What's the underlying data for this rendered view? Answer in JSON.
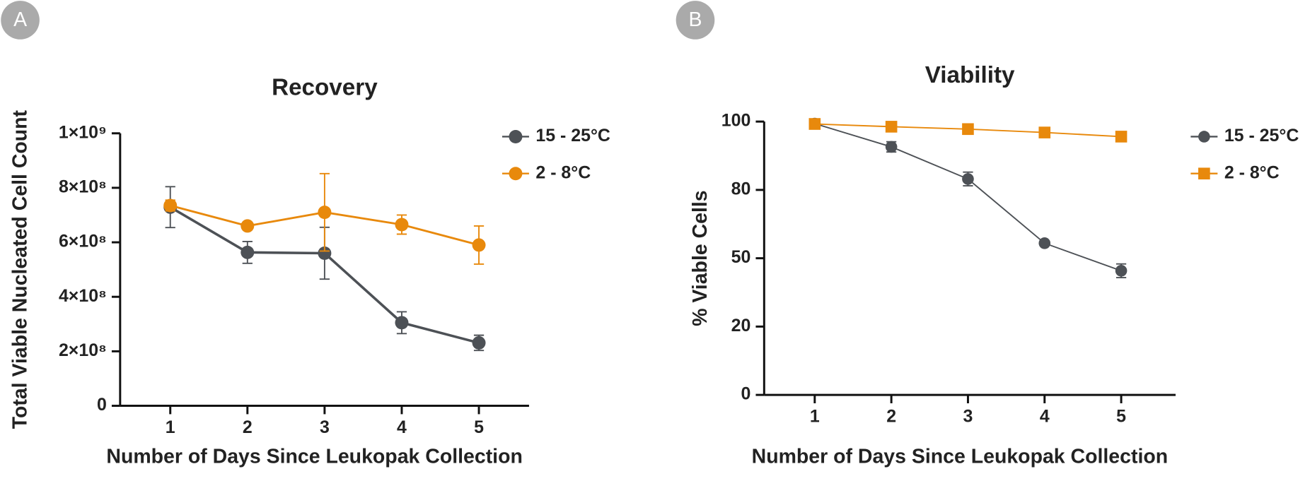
{
  "chart_data": [
    {
      "type": "line",
      "panel": "A",
      "title": "Recovery",
      "x_label": "Number of Days Since Leukopak Collection",
      "y_label": "Total Viable Nucleated Cell Count",
      "x": [
        1,
        2,
        3,
        4,
        5
      ],
      "xlim": [
        0.35,
        5.65
      ],
      "xticks": [
        1,
        2,
        3,
        4,
        5
      ],
      "ylim": [
        0,
        1000000000
      ],
      "yticks": [
        0,
        {
          "value": 200000000,
          "label": "2×10⁸"
        },
        {
          "value": 400000000,
          "label": "4×10⁸"
        },
        {
          "value": 600000000,
          "label": "6×10⁸"
        },
        {
          "value": 800000000,
          "label": "8×10⁸"
        },
        {
          "value": 1000000000,
          "label": "1×10⁹"
        }
      ],
      "legend": "right",
      "series": [
        {
          "name": "15 - 25°C",
          "color": "#4d5156",
          "marker": "circle",
          "values": [
            729000000,
            563000000,
            560000000,
            305000000,
            231000000
          ],
          "errors": [
            75000000,
            40000000,
            95000000,
            40000000,
            28000000
          ]
        },
        {
          "name": "2 - 8°C",
          "color": "#e8890c",
          "marker": "circle",
          "values": [
            735000000,
            660000000,
            710000000,
            665000000,
            590000000
          ],
          "errors": [
            20000000,
            10000000,
            142000000,
            35000000,
            70000000
          ]
        }
      ]
    },
    {
      "type": "line",
      "panel": "B",
      "title": "Viability",
      "x_label": "Number of Days Since Leukopak Collection",
      "y_label": "% Viable Cells",
      "x": [
        1,
        2,
        3,
        4,
        5
      ],
      "xlim": [
        0.34,
        5.71
      ],
      "xticks": [
        1,
        2,
        3,
        4,
        5
      ],
      "ylim": [
        0,
        100
      ],
      "yticks": [
        0,
        20,
        50,
        80,
        100
      ],
      "y_ticks_equally_spaced": true,
      "legend": "right",
      "series": [
        {
          "name": "15 - 25°C",
          "color": "#4d5156",
          "marker": "circle",
          "values": [
            99.4,
            92.6,
            83.2,
            56.6,
            44.5
          ],
          "errors": [
            0.5,
            1.5,
            2,
            0.5,
            3
          ]
        },
        {
          "name": "2 - 8°C",
          "color": "#e8890c",
          "marker": "square",
          "values": [
            99.3,
            98.5,
            97.8,
            96.8,
            95.6
          ],
          "errors": [
            0.3,
            0.3,
            0.3,
            0.3,
            0.3
          ]
        }
      ]
    }
  ]
}
